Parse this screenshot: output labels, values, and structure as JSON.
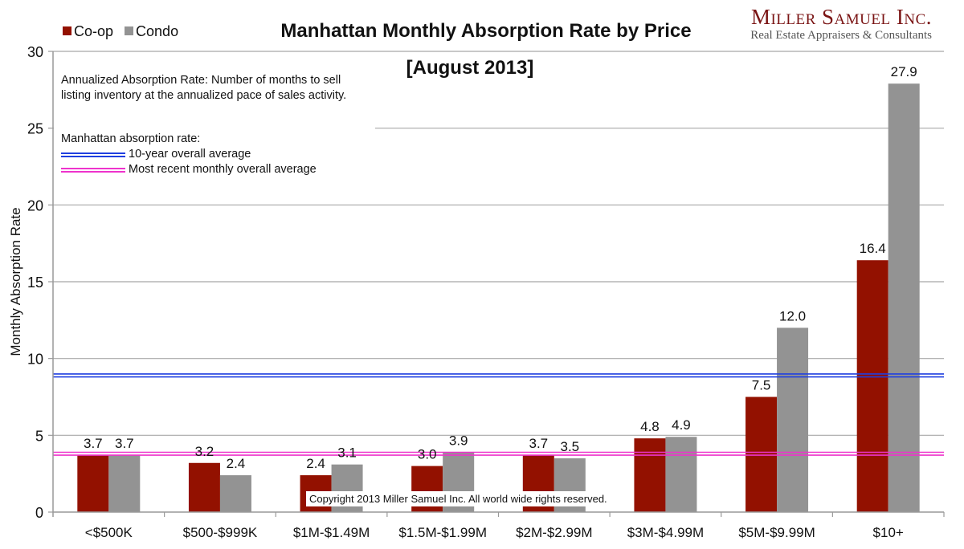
{
  "brand": {
    "name": "Miller Samuel Inc.",
    "tagline": "Real Estate Appraisers & Consultants"
  },
  "note": {
    "definition": "Annualized Absorption Rate: Number of months to sell listing inventory at the annualized pace of sales activity.",
    "reference_heading": "Manhattan absorption rate:",
    "reference_lines": [
      {
        "label": "10-year overall average",
        "color": "#1f3fe0"
      },
      {
        "label": "Most recent monthly overall average",
        "color": "#ee33cc"
      }
    ]
  },
  "copyright": "Copyright 2013 Miller Samuel Inc.  All world wide rights reserved.",
  "chart_data": {
    "type": "bar",
    "title": "Manhattan Monthly Absorption Rate by Price",
    "subtitle": "[August 2013]",
    "xlabel": "",
    "ylabel": "Monthly Absorption Rate",
    "ylim": [
      0,
      30
    ],
    "yticks": [
      0,
      5,
      10,
      15,
      20,
      25,
      30
    ],
    "grid": true,
    "legend_position": "top-left",
    "categories": [
      "<$500K",
      "$500-$999K",
      "$1M-$1.49M",
      "$1.5M-$1.99M",
      "$2M-$2.99M",
      "$3M-$4.99M",
      "$5M-$9.99M",
      "$10+"
    ],
    "series": [
      {
        "name": "Co-op",
        "color": "#931100",
        "values": [
          3.7,
          3.2,
          2.4,
          3.0,
          3.7,
          4.8,
          7.5,
          16.4
        ]
      },
      {
        "name": "Condo",
        "color": "#939393",
        "values": [
          3.7,
          2.4,
          3.1,
          3.9,
          3.5,
          4.9,
          12.0,
          27.9
        ]
      }
    ],
    "reference_lines": [
      {
        "name": "10-year overall average",
        "value": 8.9,
        "color": "#1f3fe0"
      },
      {
        "name": "Most recent monthly overall average",
        "value": 3.8,
        "color": "#ee33cc"
      }
    ]
  }
}
